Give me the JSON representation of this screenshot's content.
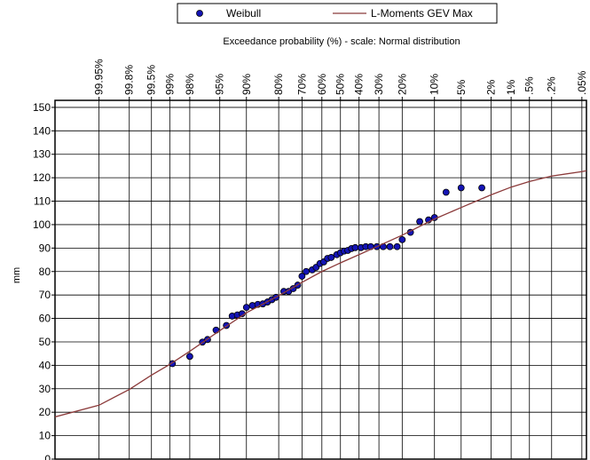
{
  "chart_data": {
    "type": "scatter",
    "title": "Exceedance probability (%) - scale: Normal distribution",
    "y_label": "mm",
    "x_scale": "normal-probability",
    "xlim": [
      99.995,
      0.04
    ],
    "xticks": [
      {
        "value": 99.95,
        "label": "99.95%"
      },
      {
        "value": 99.8,
        "label": "99.8%"
      },
      {
        "value": 99.5,
        "label": "99.5%"
      },
      {
        "value": 99,
        "label": "99%"
      },
      {
        "value": 98,
        "label": "98%"
      },
      {
        "value": 95,
        "label": "95%"
      },
      {
        "value": 90,
        "label": "90%"
      },
      {
        "value": 80,
        "label": "80%"
      },
      {
        "value": 70,
        "label": "70%"
      },
      {
        "value": 60,
        "label": "60%"
      },
      {
        "value": 50,
        "label": "50%"
      },
      {
        "value": 40,
        "label": "40%"
      },
      {
        "value": 30,
        "label": "30%"
      },
      {
        "value": 20,
        "label": "20%"
      },
      {
        "value": 10,
        "label": "10%"
      },
      {
        "value": 5,
        "label": "5%"
      },
      {
        "value": 2,
        "label": "2%"
      },
      {
        "value": 1,
        "label": "1%"
      },
      {
        "value": 0.5,
        "label": ".5%"
      },
      {
        "value": 0.2,
        "label": ".2%"
      },
      {
        "value": 0.05,
        "label": ".05%"
      }
    ],
    "ylim": [
      0,
      153
    ],
    "yticks": [
      0,
      10,
      20,
      30,
      40,
      50,
      60,
      70,
      80,
      90,
      100,
      110,
      120,
      130,
      140,
      150
    ],
    "grid": true,
    "legend": "top",
    "series": [
      {
        "name": "Weibull",
        "type": "scatter",
        "color": "#1414b4",
        "x": [
          98.9,
          98,
          97,
          96.5,
          95.5,
          94,
          93,
          92,
          91,
          90,
          88.5,
          87,
          85.5,
          84,
          82.5,
          81,
          78,
          76,
          74,
          72,
          70,
          68,
          65,
          63,
          61,
          59,
          57,
          55,
          52,
          50,
          48,
          46,
          44,
          42,
          39,
          36.5,
          34,
          31,
          28,
          25,
          22,
          20,
          17,
          14,
          11.5,
          10,
          7.5,
          5,
          2.7
        ],
        "values": [
          40.7,
          43.8,
          49.9,
          51,
          55,
          57,
          61,
          61.5,
          62,
          64.7,
          65.5,
          66,
          66.2,
          67,
          68,
          69,
          71.5,
          71.5,
          72.7,
          74.2,
          78,
          80,
          80.7,
          81.8,
          83.4,
          84.1,
          85.6,
          86,
          87.2,
          88,
          88.7,
          89,
          89.8,
          90.2,
          90.2,
          90.6,
          90.6,
          90.6,
          90.6,
          90.6,
          90.6,
          93.6,
          96.7,
          101.3,
          102,
          103,
          113.8,
          115.7,
          115.7
        ]
      },
      {
        "name": "L-Moments GEV Max",
        "type": "line",
        "color": "#8b3a3a",
        "x": [
          99.995,
          99.95,
          99.8,
          99.5,
          99,
          98,
          95,
          90,
          80,
          70,
          60,
          50,
          40,
          30,
          20,
          10,
          5,
          2,
          1,
          0.5,
          0.2,
          0.05,
          0.04
        ],
        "values": [
          18,
          23,
          29.7,
          35.8,
          40.4,
          46,
          54.8,
          62.4,
          69.7,
          75.4,
          80,
          83.7,
          87.2,
          91,
          95.5,
          102.4,
          107.3,
          112.7,
          116,
          118.4,
          120.7,
          122.6,
          123
        ]
      }
    ]
  }
}
